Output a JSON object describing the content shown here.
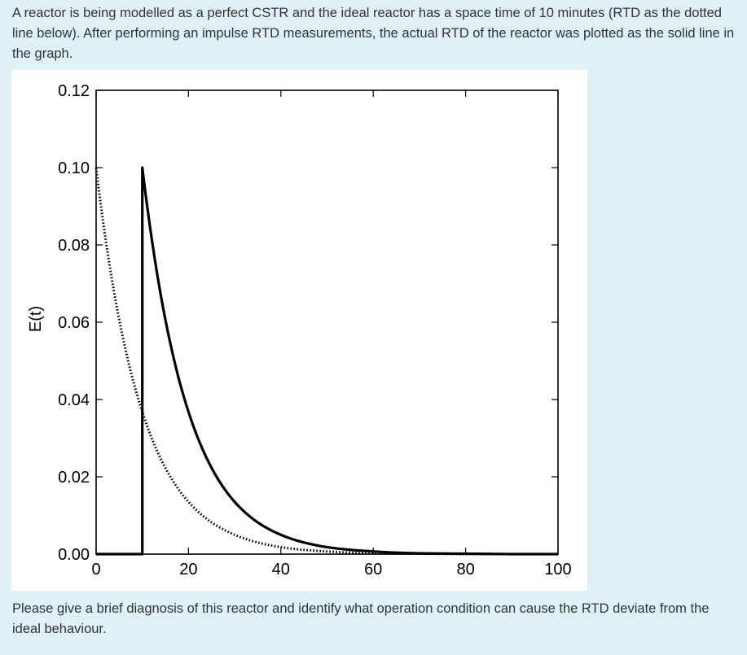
{
  "question": {
    "intro": "A reactor is being modelled as a perfect CSTR and the ideal reactor has a space time of 10 minutes (RTD as the dotted line below). After performing an impulse RTD measurements, the actual RTD of the reactor was plotted as the solid line in the graph.",
    "prompt": "Please give a brief diagnosis of this reactor and identify what operation condition can cause the RTD deviate from the ideal behaviour."
  },
  "chart_data": {
    "type": "line",
    "title": "",
    "xlabel": "",
    "ylabel": "E(t)",
    "xlim": [
      0,
      100
    ],
    "ylim": [
      0,
      0.12
    ],
    "x_ticks": [
      "0",
      "20",
      "40",
      "60",
      "80",
      "100"
    ],
    "y_ticks": [
      "0.00",
      "0.02",
      "0.04",
      "0.06",
      "0.08",
      "0.10",
      "0.12"
    ],
    "grid": false,
    "legend": "none",
    "series": [
      {
        "style": "dotted",
        "color": "#000000",
        "x": [
          0,
          2,
          4,
          6,
          8,
          10,
          12,
          15,
          18,
          20,
          25,
          30,
          35,
          40,
          45,
          50,
          55,
          60,
          70,
          80,
          90,
          100
        ],
        "y": [
          0.1,
          0.0819,
          0.067,
          0.0549,
          0.0449,
          0.0368,
          0.0301,
          0.0223,
          0.0165,
          0.0135,
          0.0082,
          0.005,
          0.003,
          0.0018,
          0.0011,
          0.0007,
          0.0004,
          0.0002,
          0.0001,
          0.0,
          0.0,
          0.0
        ]
      },
      {
        "style": "solid",
        "color": "#000000",
        "x": [
          0,
          10,
          10,
          12,
          14,
          16,
          18,
          20,
          25,
          30,
          35,
          40,
          45,
          50,
          55,
          60,
          70,
          80,
          90,
          100
        ],
        "y": [
          0,
          0,
          0.1,
          0.0819,
          0.067,
          0.0549,
          0.0449,
          0.0368,
          0.0223,
          0.0135,
          0.0082,
          0.005,
          0.003,
          0.0018,
          0.0011,
          0.0007,
          0.0002,
          0.0001,
          0.0,
          0.0
        ]
      }
    ]
  }
}
